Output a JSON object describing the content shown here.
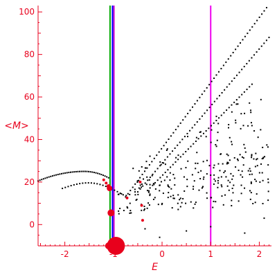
{
  "chart_data": {
    "type": "scatter",
    "xlabel": "E",
    "ylabel": "<M>",
    "xlim": [
      -2.55,
      2.25
    ],
    "ylim": [
      -10,
      103
    ],
    "xticks": [
      "-2",
      "-1",
      "0",
      "1",
      "2"
    ],
    "xtick_values": [
      -2,
      -1,
      0,
      1,
      2
    ],
    "yticks": [
      "0",
      "20",
      "40",
      "60",
      "80",
      "100"
    ],
    "ytick_values": [
      0,
      20,
      40,
      60,
      80,
      100
    ],
    "grid": false,
    "colors": {
      "axes": "#e8001c",
      "points": "#000000",
      "highlight": "#e8001c"
    },
    "vertical_lines": [
      {
        "x": -1.07,
        "color": "#00aa00"
      },
      {
        "x": -1.02,
        "color": "#0000ff"
      },
      {
        "x": -0.99,
        "color": "#cc00cc"
      },
      {
        "x": 1.0,
        "color": "#ee00ee"
      }
    ],
    "upper_branches": [
      {
        "x_start": -0.75,
        "y_start": 13,
        "x_end": 2.15,
        "y_end": 102,
        "n": 60
      },
      {
        "x_start": -0.55,
        "y_start": 14,
        "x_end": 2.2,
        "y_end": 88,
        "n": 55
      },
      {
        "x_start": -0.3,
        "y_start": 16,
        "x_end": 1.85,
        "y_end": 66,
        "n": 42
      }
    ],
    "left_arc": {
      "x_start": -2.55,
      "y_start": 20.5,
      "x_peak": -1.6,
      "y_peak": 25,
      "x_end": -1.1,
      "y_end": 22,
      "n": 40
    },
    "left_arc_lower": {
      "x_start": -2.05,
      "y_start": 17,
      "x_end": -0.8,
      "y_end": 14,
      "n": 22
    },
    "red_points": [
      {
        "x": -1.2,
        "y": 21,
        "size": 2
      },
      {
        "x": -1.15,
        "y": 19.5,
        "size": 2
      },
      {
        "x": -1.1,
        "y": 18,
        "size": 3
      },
      {
        "x": -1.08,
        "y": 17,
        "size": 4
      },
      {
        "x": -0.72,
        "y": 12.5,
        "size": 2
      },
      {
        "x": -0.45,
        "y": 20,
        "size": 2
      },
      {
        "x": -0.42,
        "y": 9,
        "size": 2
      },
      {
        "x": -0.4,
        "y": 2,
        "size": 2
      },
      {
        "x": -1.05,
        "y": 5.5,
        "size": 5
      },
      {
        "x": -0.95,
        "y": -10,
        "size": 13
      },
      {
        "x": -1.1,
        "y": -10,
        "size": 5
      }
    ]
  }
}
